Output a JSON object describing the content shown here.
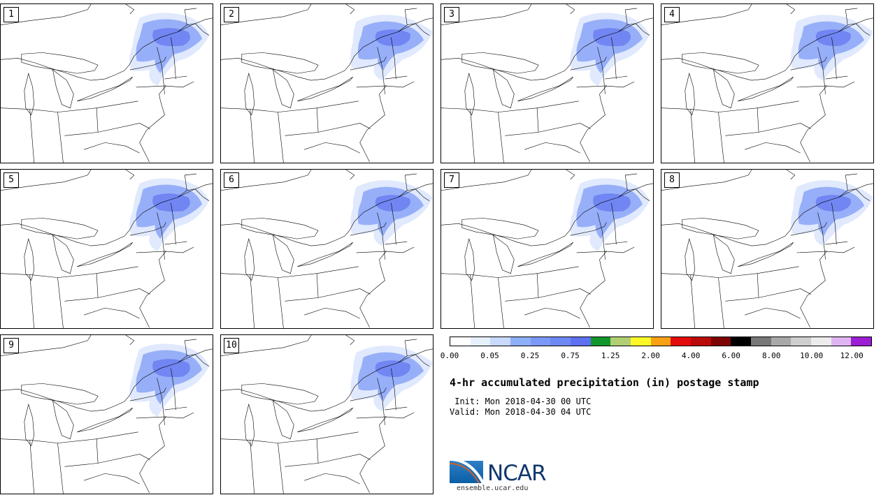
{
  "panels": [
    {
      "label": "1"
    },
    {
      "label": "2"
    },
    {
      "label": "3"
    },
    {
      "label": "4"
    },
    {
      "label": "5"
    },
    {
      "label": "6"
    },
    {
      "label": "7"
    },
    {
      "label": "8"
    },
    {
      "label": "9"
    },
    {
      "label": "10"
    }
  ],
  "colorbar": {
    "colors": [
      "#ffffff",
      "#e6f0fd",
      "#c9dafc",
      "#8cb0fa",
      "#7b98f8",
      "#6e88f4",
      "#5f70f0",
      "#11962c",
      "#b1cf72",
      "#fdf928",
      "#f9a114",
      "#e30b0b",
      "#bb0a0a",
      "#7e0304",
      "#000000",
      "#777777",
      "#a8a8a8",
      "#cecece",
      "#ececec",
      "#dfb4f2",
      "#9c1ed4"
    ],
    "tick_labels": [
      "0.00",
      "0.05",
      "0.25",
      "0.75",
      "1.25",
      "2.00",
      "4.00",
      "6.00",
      "8.00",
      "10.00",
      "12.00"
    ],
    "tick_color_indices": [
      0,
      2,
      4,
      6,
      8,
      10,
      12,
      14,
      16,
      18,
      20
    ]
  },
  "title": "4-hr accumulated precipitation (in) postage stamp",
  "init_text": " Init: Mon 2018-04-30 00 UTC",
  "valid_text": "Valid: Mon 2018-04-30 04 UTC",
  "logo": {
    "text": "NCAR",
    "url": "ensemble.ucar.edu"
  }
}
